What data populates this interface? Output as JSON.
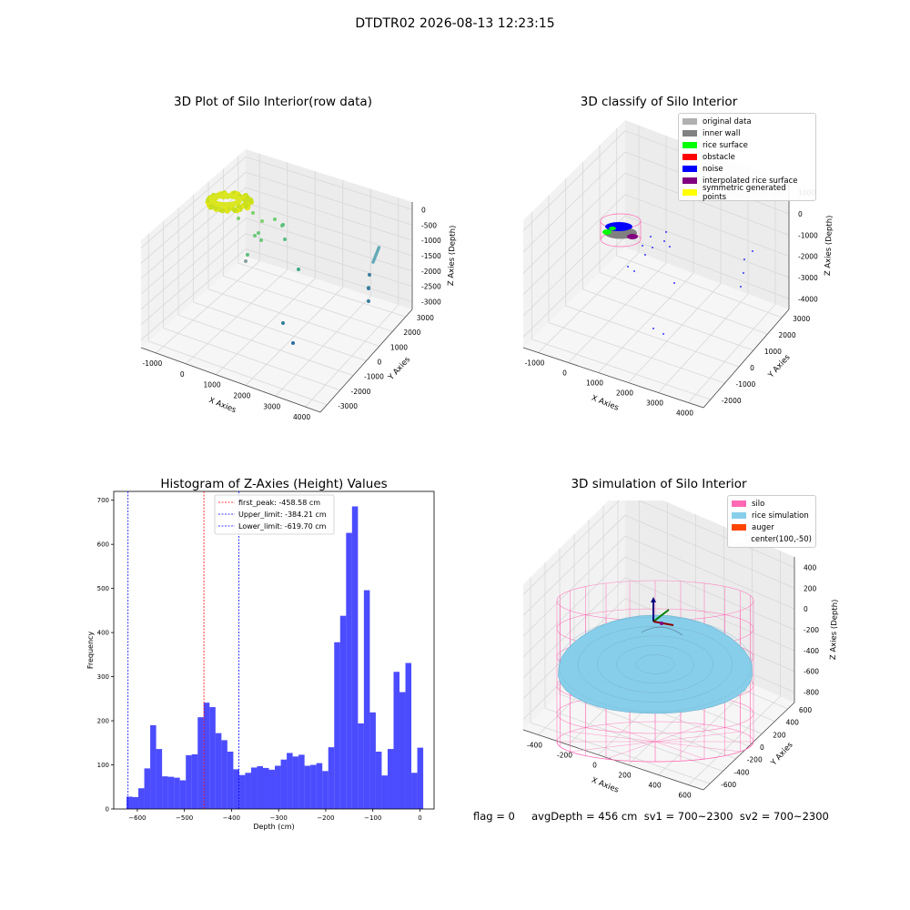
{
  "suptitle": "DTDTR02 2026-08-13 12:23:15",
  "panels": {
    "raw": {
      "title": "3D Plot of Silo Interior(row data)",
      "xlabel": "X Axies",
      "ylabel": "Y Axies",
      "zlabel": "Z Axies (Depth)",
      "xticks": [
        "-1000",
        "0",
        "1000",
        "2000",
        "3000",
        "4000"
      ],
      "yticks": [
        "-3000",
        "-2000",
        "-1000",
        "0",
        "1000",
        "2000",
        "3000"
      ],
      "zticks": [
        "0",
        "-500",
        "-1000",
        "-1500",
        "-2000",
        "-2500",
        "-3000"
      ]
    },
    "classify": {
      "title": "3D classify of Silo Interior",
      "xlabel": "X Axies",
      "ylabel": "Y Axies",
      "zlabel": "Z Axies (Depth)",
      "xticks": [
        "-1000",
        "0",
        "1000",
        "2000",
        "3000",
        "4000"
      ],
      "yticks": [
        "-2000",
        "-1000",
        "0",
        "1000",
        "2000",
        "3000"
      ],
      "zticks": [
        "1000",
        "0",
        "-1000",
        "-2000",
        "-3000",
        "-4000"
      ],
      "legend": [
        {
          "label": "original data",
          "color": "#b0b0b0"
        },
        {
          "label": "inner wall",
          "color": "#808080"
        },
        {
          "label": "rice surface",
          "color": "#00ff00"
        },
        {
          "label": "obstacle",
          "color": "#ff0000"
        },
        {
          "label": "noise",
          "color": "#0000ff"
        },
        {
          "label": "interpolated rice surface",
          "color": "#800080"
        },
        {
          "label": "symmetric generated points",
          "color": "#ffff00"
        }
      ]
    },
    "simulation": {
      "title": "3D simulation of Silo Interior",
      "xlabel": "X Axies",
      "ylabel": "Y Axies",
      "zlabel": "Z Axies (Depth)",
      "xticks": [
        "-400",
        "-200",
        "0",
        "200",
        "400",
        "600"
      ],
      "yticks": [
        "-600",
        "-400",
        "-200",
        "0",
        "200",
        "400",
        "600"
      ],
      "zticks": [
        "400",
        "200",
        "0",
        "-200",
        "-400",
        "-600",
        "-800"
      ],
      "legend": [
        {
          "label": "silo",
          "color": "#ff69b4"
        },
        {
          "label": "rice simulation",
          "color": "#87ceeb"
        },
        {
          "label": "auger",
          "color": "#ff4500"
        },
        {
          "label": "center(100,-50)",
          "color": "#ffffff"
        }
      ]
    }
  },
  "chart_data": {
    "type": "bar",
    "title": "Histogram of Z-Axies (Height) Values",
    "xlabel": "Depth (cm)",
    "ylabel": "Frequency",
    "xlim": [
      -650,
      30
    ],
    "ylim": [
      0,
      720
    ],
    "xticks": [
      -600,
      -500,
      -400,
      -300,
      -200,
      -100,
      0
    ],
    "yticks": [
      0,
      100,
      200,
      300,
      400,
      500,
      600,
      700
    ],
    "bar_color": "#0000ff",
    "bin_start": -623,
    "bin_width": 12.6,
    "values": [
      28,
      27,
      47,
      92,
      190,
      136,
      74,
      73,
      71,
      65,
      122,
      124,
      208,
      241,
      231,
      172,
      156,
      130,
      90,
      77,
      82,
      94,
      97,
      93,
      89,
      98,
      112,
      127,
      119,
      123,
      98,
      100,
      104,
      86,
      140,
      378,
      438,
      626,
      686,
      194,
      496,
      219,
      130,
      76,
      136,
      311,
      265,
      331,
      82,
      139
    ],
    "lines": [
      {
        "label": "first_peak: -458.58 cm",
        "x": -458.58,
        "color": "#ff0000"
      },
      {
        "label": "Upper_limit: -384.21 cm",
        "x": -384.21,
        "color": "#0000ff"
      },
      {
        "label": "Lower_limit: -619.70 cm",
        "x": -619.7,
        "color": "#0000ff"
      }
    ]
  },
  "status": "flag = 0     avgDepth = 456 cm  sv1 = 700~2300  sv2 = 700~2300"
}
